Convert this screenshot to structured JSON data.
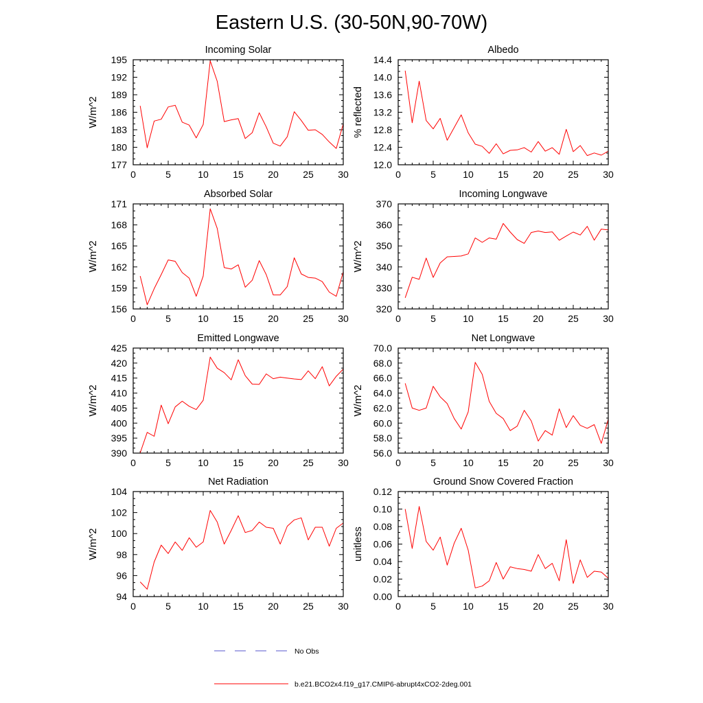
{
  "figure": {
    "title": "Eastern U.S. (30-50N,90-70W)",
    "legend": [
      {
        "label": "No Obs",
        "color": "#5555cc",
        "style": "dashed"
      },
      {
        "label": "b.e21.BCO2x4.f19_g17.CMIP6-abrupt4xCO2-2deg.001",
        "color": "#ff0000",
        "style": "solid"
      }
    ]
  },
  "chart_data": [
    {
      "type": "line",
      "title": "Incoming Solar",
      "xlabel": "",
      "ylabel": "W/m^2",
      "xlim": [
        0,
        30
      ],
      "ylim": [
        177,
        195
      ],
      "xticks": [
        0,
        5,
        10,
        15,
        20,
        25,
        30
      ],
      "yticks": [
        177,
        180,
        183,
        186,
        189,
        192,
        195
      ],
      "ytick_labels": [
        "177",
        "180",
        "183",
        "186",
        "189",
        "192",
        "195"
      ],
      "x": [
        1,
        2,
        3,
        4,
        5,
        6,
        7,
        8,
        9,
        10,
        11,
        12,
        13,
        14,
        15,
        16,
        17,
        18,
        19,
        20,
        21,
        22,
        23,
        24,
        25,
        26,
        27,
        28,
        29,
        30
      ],
      "series": [
        {
          "name": "b.e21.BCO2x4.f19_g17.CMIP6-abrupt4xCO2-2deg.001",
          "color": "#ff0000",
          "values": [
            187.1,
            179.9,
            184.5,
            184.8,
            186.9,
            187.2,
            184.3,
            183.8,
            181.6,
            183.9,
            194.8,
            191.3,
            184.4,
            184.7,
            184.9,
            181.5,
            182.5,
            185.9,
            183.5,
            180.7,
            180.2,
            181.8,
            186.1,
            184.6,
            182.9,
            183.0,
            182.2,
            180.9,
            179.8,
            184.0
          ]
        }
      ]
    },
    {
      "type": "line",
      "title": "Albedo",
      "xlabel": "",
      "ylabel": "% reflected",
      "xlim": [
        0,
        30
      ],
      "ylim": [
        12.0,
        14.4
      ],
      "xticks": [
        0,
        5,
        10,
        15,
        20,
        25,
        30
      ],
      "yticks": [
        12.0,
        12.4,
        12.8,
        13.2,
        13.6,
        14.0,
        14.4
      ],
      "ytick_labels": [
        "12.0",
        "12.4",
        "12.8",
        "13.2",
        "13.6",
        "14.0",
        "14.4"
      ],
      "x": [
        1,
        2,
        3,
        4,
        5,
        6,
        7,
        8,
        9,
        10,
        11,
        12,
        13,
        14,
        15,
        16,
        17,
        18,
        19,
        20,
        21,
        22,
        23,
        24,
        25,
        26,
        27,
        28,
        29,
        30
      ],
      "series": [
        {
          "name": "b.e21.BCO2x4.f19_g17.CMIP6-abrupt4xCO2-2deg.001",
          "color": "#ff0000",
          "values": [
            14.15,
            12.96,
            13.91,
            13.01,
            12.82,
            13.06,
            12.56,
            12.85,
            13.14,
            12.73,
            12.47,
            12.42,
            12.26,
            12.48,
            12.25,
            12.33,
            12.34,
            12.39,
            12.29,
            12.53,
            12.31,
            12.39,
            12.24,
            12.81,
            12.3,
            12.44,
            12.21,
            12.27,
            12.22,
            12.31
          ]
        }
      ]
    },
    {
      "type": "line",
      "title": "Absorbed Solar",
      "xlabel": "",
      "ylabel": "W/m^2",
      "xlim": [
        0,
        30
      ],
      "ylim": [
        156,
        171
      ],
      "xticks": [
        0,
        5,
        10,
        15,
        20,
        25,
        30
      ],
      "yticks": [
        156,
        159,
        162,
        165,
        168,
        171
      ],
      "ytick_labels": [
        "156",
        "159",
        "162",
        "165",
        "168",
        "171"
      ],
      "x": [
        1,
        2,
        3,
        4,
        5,
        6,
        7,
        8,
        9,
        10,
        11,
        12,
        13,
        14,
        15,
        16,
        17,
        18,
        19,
        20,
        21,
        22,
        23,
        24,
        25,
        26,
        27,
        28,
        29,
        30
      ],
      "series": [
        {
          "name": "b.e21.BCO2x4.f19_g17.CMIP6-abrupt4xCO2-2deg.001",
          "color": "#ff0000",
          "values": [
            160.7,
            156.6,
            158.9,
            160.9,
            163.0,
            162.8,
            161.2,
            160.4,
            157.8,
            160.7,
            170.3,
            167.5,
            161.9,
            161.7,
            162.3,
            159.1,
            160.1,
            162.9,
            160.9,
            158.0,
            158.0,
            159.2,
            163.3,
            161.0,
            160.5,
            160.4,
            159.9,
            158.4,
            157.8,
            161.3
          ]
        }
      ]
    },
    {
      "type": "line",
      "title": "Incoming Longwave",
      "xlabel": "",
      "ylabel": "W/m^2",
      "xlim": [
        0,
        30
      ],
      "ylim": [
        320,
        370
      ],
      "xticks": [
        0,
        5,
        10,
        15,
        20,
        25,
        30
      ],
      "yticks": [
        320,
        330,
        340,
        350,
        360,
        370
      ],
      "ytick_labels": [
        "320",
        "330",
        "340",
        "350",
        "360",
        "370"
      ],
      "x": [
        1,
        2,
        3,
        4,
        5,
        6,
        7,
        8,
        9,
        10,
        11,
        12,
        13,
        14,
        15,
        16,
        17,
        18,
        19,
        20,
        21,
        22,
        23,
        24,
        25,
        26,
        27,
        28,
        29,
        30
      ],
      "series": [
        {
          "name": "b.e21.BCO2x4.f19_g17.CMIP6-abrupt4xCO2-2deg.001",
          "color": "#ff0000",
          "values": [
            325.3,
            335.1,
            334.1,
            344.2,
            335.0,
            341.9,
            344.8,
            345.0,
            345.2,
            346.2,
            353.8,
            351.7,
            353.8,
            353.2,
            360.7,
            356.6,
            353.0,
            351.2,
            356.4,
            357.1,
            356.4,
            356.7,
            352.7,
            354.7,
            356.6,
            355.2,
            359.3,
            352.7,
            358.0,
            357.6
          ]
        }
      ]
    },
    {
      "type": "line",
      "title": "Emitted Longwave",
      "xlabel": "",
      "ylabel": "W/m^2",
      "xlim": [
        0,
        30
      ],
      "ylim": [
        390,
        425
      ],
      "xticks": [
        0,
        5,
        10,
        15,
        20,
        25,
        30
      ],
      "yticks": [
        390,
        395,
        400,
        405,
        410,
        415,
        420,
        425
      ],
      "ytick_labels": [
        "390",
        "395",
        "400",
        "405",
        "410",
        "415",
        "420",
        "425"
      ],
      "x": [
        1,
        2,
        3,
        4,
        5,
        6,
        7,
        8,
        9,
        10,
        11,
        12,
        13,
        14,
        15,
        16,
        17,
        18,
        19,
        20,
        21,
        22,
        23,
        24,
        25,
        26,
        27,
        28,
        29,
        30
      ],
      "series": [
        {
          "name": "b.e21.BCO2x4.f19_g17.CMIP6-abrupt4xCO2-2deg.001",
          "color": "#ff0000",
          "values": [
            390.1,
            396.9,
            395.6,
            406.0,
            399.8,
            405.4,
            407.3,
            405.6,
            404.5,
            407.6,
            422.0,
            418.3,
            416.8,
            414.4,
            421.1,
            415.8,
            413.0,
            412.9,
            416.4,
            414.8,
            415.3,
            415.0,
            414.7,
            414.5,
            417.4,
            414.8,
            418.8,
            412.4,
            415.6,
            418.0
          ]
        }
      ]
    },
    {
      "type": "line",
      "title": "Net Longwave",
      "xlabel": "",
      "ylabel": "W/m^2",
      "xlim": [
        0,
        30
      ],
      "ylim": [
        56.0,
        70.0
      ],
      "xticks": [
        0,
        5,
        10,
        15,
        20,
        25,
        30
      ],
      "yticks": [
        56.0,
        58.0,
        60.0,
        62.0,
        64.0,
        66.0,
        68.0,
        70.0
      ],
      "ytick_labels": [
        "56.0",
        "58.0",
        "60.0",
        "62.0",
        "64.0",
        "66.0",
        "68.0",
        "70.0"
      ],
      "x": [
        1,
        2,
        3,
        4,
        5,
        6,
        7,
        8,
        9,
        10,
        11,
        12,
        13,
        14,
        15,
        16,
        17,
        18,
        19,
        20,
        21,
        22,
        23,
        24,
        25,
        26,
        27,
        28,
        29,
        30
      ],
      "series": [
        {
          "name": "b.e21.BCO2x4.f19_g17.CMIP6-abrupt4xCO2-2deg.001",
          "color": "#ff0000",
          "values": [
            65.3,
            62.0,
            61.7,
            62.0,
            64.9,
            63.5,
            62.6,
            60.6,
            59.2,
            61.5,
            68.1,
            66.5,
            62.9,
            61.3,
            60.6,
            59.0,
            59.6,
            61.7,
            60.3,
            57.6,
            59.0,
            58.4,
            61.9,
            59.4,
            61.0,
            59.7,
            59.3,
            59.8,
            57.3,
            60.5
          ]
        }
      ]
    },
    {
      "type": "line",
      "title": "Net Radiation",
      "xlabel": "",
      "ylabel": "W/m^2",
      "xlim": [
        0,
        30
      ],
      "ylim": [
        94,
        104
      ],
      "xticks": [
        0,
        5,
        10,
        15,
        20,
        25,
        30
      ],
      "yticks": [
        94,
        96,
        98,
        100,
        102,
        104
      ],
      "ytick_labels": [
        "94",
        "96",
        "98",
        "100",
        "102",
        "104"
      ],
      "x": [
        1,
        2,
        3,
        4,
        5,
        6,
        7,
        8,
        9,
        10,
        11,
        12,
        13,
        14,
        15,
        16,
        17,
        18,
        19,
        20,
        21,
        22,
        23,
        24,
        25,
        26,
        27,
        28,
        29,
        30
      ],
      "series": [
        {
          "name": "b.e21.BCO2x4.f19_g17.CMIP6-abrupt4xCO2-2deg.001",
          "color": "#ff0000",
          "values": [
            95.4,
            94.7,
            97.3,
            98.9,
            98.1,
            99.2,
            98.4,
            99.6,
            98.7,
            99.2,
            102.2,
            101.1,
            99.0,
            100.3,
            101.7,
            100.1,
            100.3,
            101.1,
            100.6,
            100.5,
            99.0,
            100.7,
            101.3,
            101.5,
            99.4,
            100.6,
            100.6,
            98.8,
            100.5,
            101.0
          ]
        }
      ]
    },
    {
      "type": "line",
      "title": "Ground Snow Covered Fraction",
      "xlabel": "",
      "ylabel": "unitless",
      "xlim": [
        0,
        30
      ],
      "ylim": [
        0.0,
        0.12
      ],
      "xticks": [
        0,
        5,
        10,
        15,
        20,
        25,
        30
      ],
      "yticks": [
        0.0,
        0.02,
        0.04,
        0.06,
        0.08,
        0.1,
        0.12
      ],
      "ytick_labels": [
        "0.00",
        "0.02",
        "0.04",
        "0.06",
        "0.08",
        "0.10",
        "0.12"
      ],
      "x": [
        1,
        2,
        3,
        4,
        5,
        6,
        7,
        8,
        9,
        10,
        11,
        12,
        13,
        14,
        15,
        16,
        17,
        18,
        19,
        20,
        21,
        22,
        23,
        24,
        25,
        26,
        27,
        28,
        29,
        30
      ],
      "series": [
        {
          "name": "b.e21.BCO2x4.f19_g17.CMIP6-abrupt4xCO2-2deg.001",
          "color": "#ff0000",
          "values": [
            0.1,
            0.055,
            0.103,
            0.063,
            0.053,
            0.068,
            0.036,
            0.061,
            0.078,
            0.053,
            0.01,
            0.012,
            0.018,
            0.039,
            0.02,
            0.034,
            0.032,
            0.031,
            0.029,
            0.048,
            0.032,
            0.038,
            0.018,
            0.065,
            0.015,
            0.042,
            0.022,
            0.029,
            0.028,
            0.021
          ]
        }
      ]
    }
  ]
}
